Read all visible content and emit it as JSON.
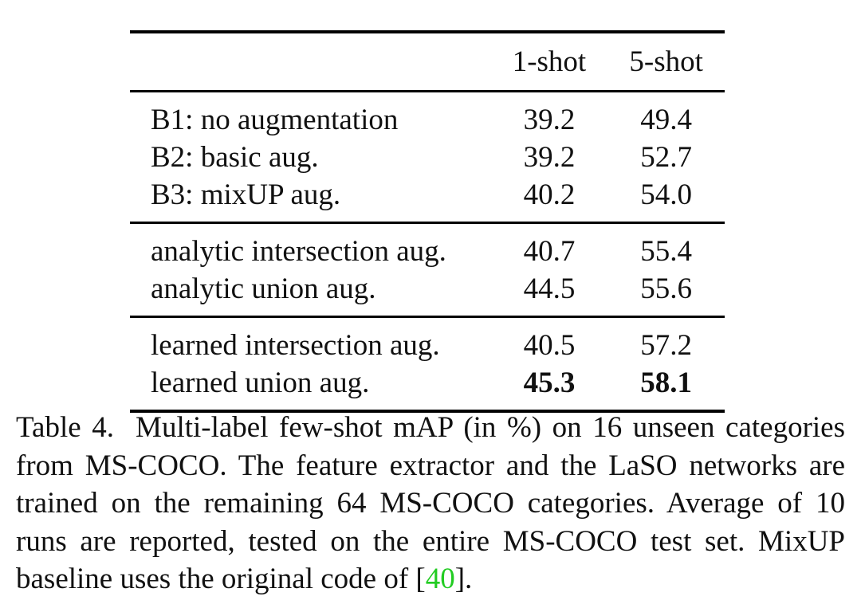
{
  "table": {
    "header": {
      "method": "",
      "col1": "1-shot",
      "col2": "5-shot"
    },
    "groups": [
      {
        "rows": [
          {
            "method": "B1: no augmentation",
            "col1": "39.2",
            "col2": "49.4"
          },
          {
            "method": "B2: basic aug.",
            "col1": "39.2",
            "col2": "52.7"
          },
          {
            "method": "B3: mixUP aug.",
            "col1": "40.2",
            "col2": "54.0"
          }
        ]
      },
      {
        "rows": [
          {
            "method": "analytic intersection aug.",
            "col1": "40.7",
            "col2": "55.4"
          },
          {
            "method": "analytic union aug.",
            "col1": "44.5",
            "col2": "55.6"
          }
        ]
      },
      {
        "rows": [
          {
            "method": "learned intersection aug.",
            "col1": "40.5",
            "col2": "57.2"
          },
          {
            "method": "learned union aug.",
            "col1": "45.3",
            "col2": "58.1",
            "bold": true
          }
        ]
      }
    ]
  },
  "caption": {
    "label": "Table 4.",
    "text": "Multi-label few-shot mAP (in %) on 16 unseen categories from MS-COCO. The feature extractor and the LaSO networks are trained on the remaining 64 MS-COCO categories. Average of 10 runs are reported, tested on the entire MS-COCO test set. MixUP baseline uses the original code of [",
    "citation": "40",
    "tail": "].",
    "citation_color": "#22cc22"
  }
}
